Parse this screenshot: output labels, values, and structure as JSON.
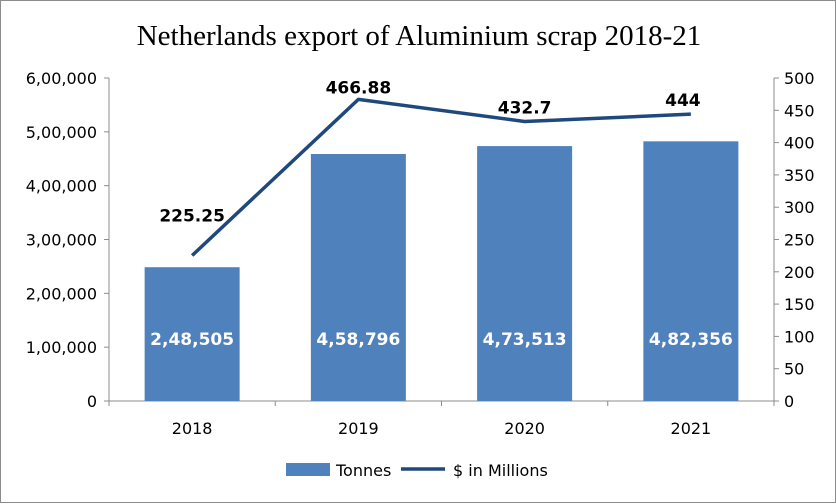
{
  "chart_data": {
    "type": "bar",
    "title": "Netherlands export of Aluminium scrap 2018-21",
    "categories": [
      "2018",
      "2019",
      "2020",
      "2021"
    ],
    "series": [
      {
        "name": "Tonnes",
        "type": "bar",
        "axis": "left",
        "values": [
          248505,
          458796,
          473513,
          482356
        ],
        "value_labels": [
          "2,48,505",
          "4,58,796",
          "4,73,513",
          "4,82,356"
        ],
        "color": "#4f81bd"
      },
      {
        "name": "$ in Millions",
        "type": "line",
        "axis": "right",
        "values": [
          225.25,
          466.88,
          432.7,
          444
        ],
        "value_labels": [
          "225.25",
          "466.88",
          "432.7",
          "444"
        ],
        "color": "#1f497d"
      }
    ],
    "y_left": {
      "ylim": [
        0,
        600000
      ],
      "ticks": [
        0,
        100000,
        200000,
        300000,
        400000,
        500000,
        600000
      ],
      "tick_labels": [
        "0",
        "1,00,000",
        "2,00,000",
        "3,00,000",
        "4,00,000",
        "5,00,000",
        "6,00,000"
      ]
    },
    "y_right": {
      "ylim": [
        0,
        500
      ],
      "ticks": [
        0,
        50,
        100,
        150,
        200,
        250,
        300,
        350,
        400,
        450,
        500
      ],
      "tick_labels": [
        "0",
        "50",
        "100",
        "150",
        "200",
        "250",
        "300",
        "350",
        "400",
        "450",
        "500"
      ]
    },
    "grid": false,
    "legend_position": "bottom"
  }
}
